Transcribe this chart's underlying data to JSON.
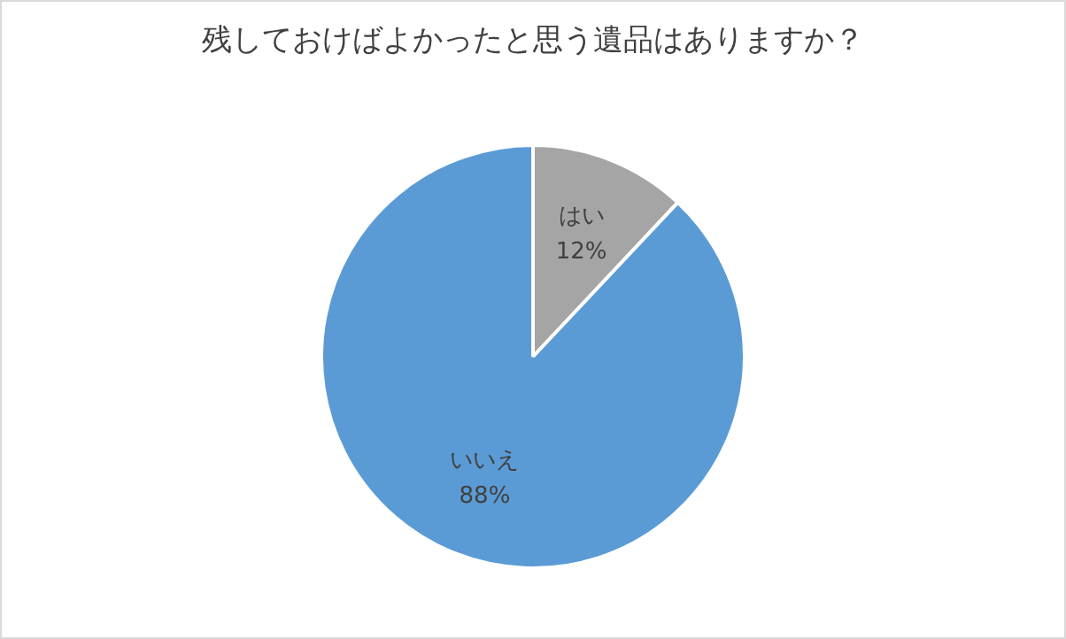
{
  "chart_data": {
    "type": "pie",
    "title": "残しておけばよかったと思う遺品はありますか？",
    "categories": [
      "はい",
      "いいえ"
    ],
    "values": [
      12,
      88
    ],
    "colors": [
      "#a5a5a5",
      "#5b9bd5"
    ],
    "value_labels": [
      "12%",
      "88%"
    ],
    "legend": false
  }
}
